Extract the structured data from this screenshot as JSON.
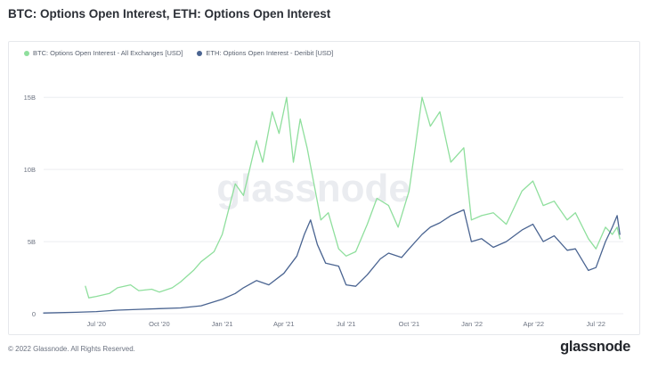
{
  "header": {
    "title": "BTC: Options Open Interest, ETH: Options Open Interest"
  },
  "watermark": "glassnode",
  "footer": {
    "copyright": "© 2022 Glassnode. All Rights Reserved.",
    "logo": "glassnode"
  },
  "colors": {
    "btc": "#8fdf9d",
    "eth": "#4a6491",
    "grid": "#eceef1",
    "axis_text": "#6b7280",
    "watermark": "#d9dde3"
  },
  "chart_data": {
    "type": "line",
    "title": "BTC: Options Open Interest, ETH: Options Open Interest",
    "legend_position": "top-left",
    "x_range": [
      "2020-04-15",
      "2022-08-10"
    ],
    "ylim": [
      0,
      16000000000
    ],
    "y_ticks": [
      0,
      5000000000,
      10000000000,
      15000000000
    ],
    "y_tick_labels": [
      "0",
      "5B",
      "10B",
      "15B"
    ],
    "x_ticks": [
      "2020-07-01",
      "2020-10-01",
      "2021-01-01",
      "2021-04-01",
      "2021-07-01",
      "2021-10-01",
      "2022-01-01",
      "2022-04-01",
      "2022-07-01"
    ],
    "x_tick_labels": [
      "Jul '20",
      "Oct '20",
      "Jan '21",
      "Apr '21",
      "Jul '21",
      "Oct '21",
      "Jan '22",
      "Apr '22",
      "Jul '22"
    ],
    "grid": true,
    "series": [
      {
        "name": "BTC: Options Open Interest - All Exchanges [USD]",
        "color": "#8fdf9d",
        "points": [
          [
            "2020-06-15",
            1900000000
          ],
          [
            "2020-06-20",
            1100000000
          ],
          [
            "2020-07-01",
            1200000000
          ],
          [
            "2020-07-20",
            1400000000
          ],
          [
            "2020-08-01",
            1800000000
          ],
          [
            "2020-08-20",
            2000000000
          ],
          [
            "2020-09-01",
            1600000000
          ],
          [
            "2020-09-20",
            1700000000
          ],
          [
            "2020-10-01",
            1500000000
          ],
          [
            "2020-10-20",
            1800000000
          ],
          [
            "2020-11-01",
            2200000000
          ],
          [
            "2020-11-20",
            3000000000
          ],
          [
            "2020-12-01",
            3600000000
          ],
          [
            "2020-12-20",
            4300000000
          ],
          [
            "2021-01-01",
            5500000000
          ],
          [
            "2021-01-20",
            9000000000
          ],
          [
            "2021-02-01",
            8200000000
          ],
          [
            "2021-02-20",
            12000000000
          ],
          [
            "2021-03-01",
            10500000000
          ],
          [
            "2021-03-15",
            14000000000
          ],
          [
            "2021-03-25",
            12500000000
          ],
          [
            "2021-04-05",
            15000000000
          ],
          [
            "2021-04-15",
            10500000000
          ],
          [
            "2021-04-25",
            13500000000
          ],
          [
            "2021-05-05",
            11500000000
          ],
          [
            "2021-05-15",
            9000000000
          ],
          [
            "2021-05-25",
            6500000000
          ],
          [
            "2021-06-05",
            7000000000
          ],
          [
            "2021-06-20",
            4500000000
          ],
          [
            "2021-07-01",
            4000000000
          ],
          [
            "2021-07-15",
            4300000000
          ],
          [
            "2021-08-01",
            6200000000
          ],
          [
            "2021-08-15",
            8000000000
          ],
          [
            "2021-09-01",
            7500000000
          ],
          [
            "2021-09-15",
            6000000000
          ],
          [
            "2021-10-01",
            8500000000
          ],
          [
            "2021-10-10",
            11500000000
          ],
          [
            "2021-10-20",
            15000000000
          ],
          [
            "2021-11-01",
            13000000000
          ],
          [
            "2021-11-15",
            14000000000
          ],
          [
            "2021-12-01",
            10500000000
          ],
          [
            "2021-12-20",
            11500000000
          ],
          [
            "2021-12-31",
            6500000000
          ],
          [
            "2022-01-15",
            6800000000
          ],
          [
            "2022-02-01",
            7000000000
          ],
          [
            "2022-02-20",
            6200000000
          ],
          [
            "2022-03-15",
            8500000000
          ],
          [
            "2022-03-31",
            9200000000
          ],
          [
            "2022-04-15",
            7500000000
          ],
          [
            "2022-05-01",
            7800000000
          ],
          [
            "2022-05-20",
            6500000000
          ],
          [
            "2022-06-01",
            7000000000
          ],
          [
            "2022-06-20",
            5200000000
          ],
          [
            "2022-07-01",
            4500000000
          ],
          [
            "2022-07-15",
            6000000000
          ],
          [
            "2022-07-25",
            5500000000
          ],
          [
            "2022-08-01",
            6000000000
          ],
          [
            "2022-08-05",
            5200000000
          ]
        ]
      },
      {
        "name": "ETH: Options Open Interest - Deribit [USD]",
        "color": "#4a6491",
        "points": [
          [
            "2020-04-15",
            50000000
          ],
          [
            "2020-06-01",
            100000000
          ],
          [
            "2020-07-01",
            150000000
          ],
          [
            "2020-08-01",
            250000000
          ],
          [
            "2020-09-01",
            300000000
          ],
          [
            "2020-10-01",
            350000000
          ],
          [
            "2020-11-01",
            400000000
          ],
          [
            "2020-12-01",
            550000000
          ],
          [
            "2021-01-01",
            1000000000
          ],
          [
            "2021-01-20",
            1400000000
          ],
          [
            "2021-02-01",
            1800000000
          ],
          [
            "2021-02-20",
            2300000000
          ],
          [
            "2021-03-10",
            2000000000
          ],
          [
            "2021-04-01",
            2800000000
          ],
          [
            "2021-04-20",
            4000000000
          ],
          [
            "2021-05-01",
            5500000000
          ],
          [
            "2021-05-10",
            6500000000
          ],
          [
            "2021-05-20",
            4800000000
          ],
          [
            "2021-06-01",
            3500000000
          ],
          [
            "2021-06-20",
            3300000000
          ],
          [
            "2021-07-01",
            2000000000
          ],
          [
            "2021-07-15",
            1900000000
          ],
          [
            "2021-08-01",
            2700000000
          ],
          [
            "2021-08-20",
            3800000000
          ],
          [
            "2021-09-01",
            4200000000
          ],
          [
            "2021-09-20",
            3900000000
          ],
          [
            "2021-10-01",
            4500000000
          ],
          [
            "2021-10-20",
            5500000000
          ],
          [
            "2021-11-01",
            6000000000
          ],
          [
            "2021-11-15",
            6300000000
          ],
          [
            "2021-12-01",
            6800000000
          ],
          [
            "2021-12-20",
            7200000000
          ],
          [
            "2021-12-31",
            5000000000
          ],
          [
            "2022-01-15",
            5200000000
          ],
          [
            "2022-02-01",
            4600000000
          ],
          [
            "2022-02-20",
            5000000000
          ],
          [
            "2022-03-15",
            5800000000
          ],
          [
            "2022-03-31",
            6200000000
          ],
          [
            "2022-04-15",
            5000000000
          ],
          [
            "2022-05-01",
            5400000000
          ],
          [
            "2022-05-20",
            4400000000
          ],
          [
            "2022-06-01",
            4500000000
          ],
          [
            "2022-06-20",
            3000000000
          ],
          [
            "2022-07-01",
            3200000000
          ],
          [
            "2022-07-15",
            5000000000
          ],
          [
            "2022-07-25",
            6000000000
          ],
          [
            "2022-08-01",
            6800000000
          ],
          [
            "2022-08-05",
            5500000000
          ]
        ]
      }
    ]
  }
}
